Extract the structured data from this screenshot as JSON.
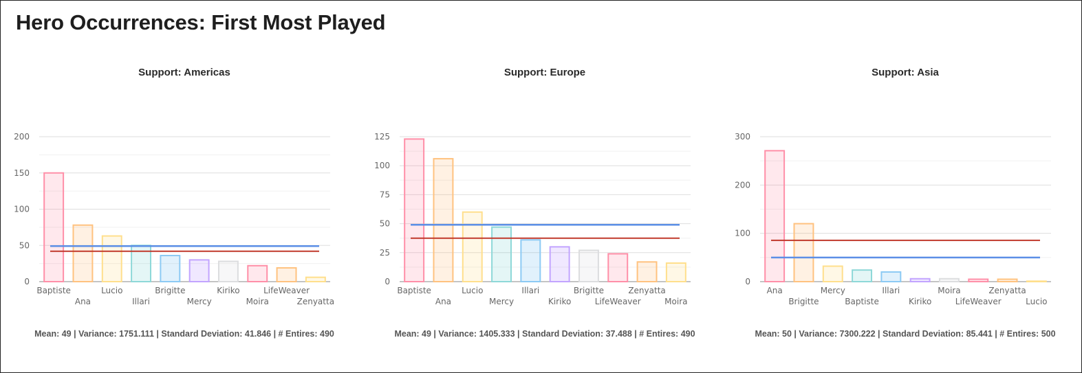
{
  "page_title": "Hero Occurrences: First Most Played",
  "colors": {
    "mean_line": "#5b8fe6",
    "std_line": "#c0392b",
    "bar_palette": [
      {
        "fill": "rgba(255,99,132,0.15)",
        "stroke": "#ff8fa8"
      },
      {
        "fill": "rgba(255,159,64,0.15)",
        "stroke": "#ffc27f"
      },
      {
        "fill": "rgba(255,205,86,0.15)",
        "stroke": "#ffdf8c"
      },
      {
        "fill": "rgba(75,192,192,0.15)",
        "stroke": "#8ed8d8"
      },
      {
        "fill": "rgba(54,162,235,0.15)",
        "stroke": "#8ccaf4"
      },
      {
        "fill": "rgba(153,102,255,0.15)",
        "stroke": "#c2a4ff"
      },
      {
        "fill": "rgba(201,203,207,0.15)",
        "stroke": "#dcdddf"
      }
    ]
  },
  "chart_data": [
    {
      "type": "bar",
      "title": "Support: Americas",
      "categories": [
        "Baptiste",
        "Ana",
        "Lucio",
        "Illari",
        "Brigitte",
        "Mercy",
        "Kiriko",
        "Moira",
        "LifeWeaver",
        "Zenyatta"
      ],
      "values": [
        150,
        78,
        63,
        50,
        36,
        30,
        28,
        22,
        19,
        6
      ],
      "ylim": [
        0,
        200
      ],
      "yticks": [
        0,
        50,
        100,
        150,
        200
      ],
      "mean_line": 49,
      "std_line": 42,
      "stats_text": "Mean: 49 | Variance: 1751.111 | Standard Deviation: 41.846 | # Entires: 490"
    },
    {
      "type": "bar",
      "title": "Support: Europe",
      "categories": [
        "Baptiste",
        "Ana",
        "Lucio",
        "Mercy",
        "Illari",
        "Kiriko",
        "Brigitte",
        "LifeWeaver",
        "Zenyatta",
        "Moira"
      ],
      "values": [
        123,
        106,
        60,
        47,
        36,
        30,
        27,
        24,
        17,
        16
      ],
      "ylim": [
        0,
        125
      ],
      "yticks": [
        0,
        25,
        50,
        75,
        100,
        125
      ],
      "mean_line": 49,
      "std_line": 37.5,
      "stats_text": "Mean: 49 | Variance: 1405.333 | Standard Deviation: 37.488 | # Entires: 490"
    },
    {
      "type": "bar",
      "title": "Support: Asia",
      "categories": [
        "Ana",
        "Brigitte",
        "Mercy",
        "Baptiste",
        "Illari",
        "Kiriko",
        "Moira",
        "LifeWeaver",
        "Zenyatta",
        "Lucio"
      ],
      "values": [
        271,
        120,
        32,
        24,
        20,
        6,
        6,
        5,
        5,
        1
      ],
      "ylim": [
        0,
        300
      ],
      "yticks": [
        0,
        100,
        200,
        300
      ],
      "mean_line": 50,
      "std_line": 85.4,
      "stats_text": "Mean: 50 | Variance: 7300.222 | Standard Deviation: 85.441 | # Entires: 500"
    }
  ]
}
